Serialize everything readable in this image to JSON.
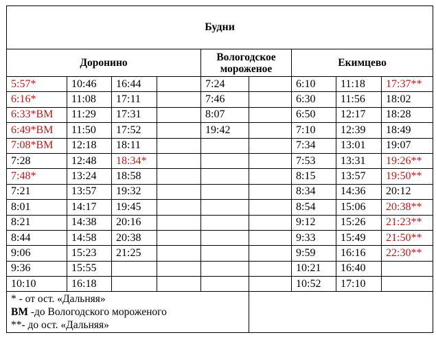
{
  "title": "Будни",
  "headers": {
    "doronino": "Доронино",
    "vologodskoe": "Вологодское мороженое",
    "ekimtsevo": "Екимцево"
  },
  "colors": {
    "highlight": "#b01c1c",
    "text": "#000000"
  },
  "rows": [
    [
      {
        "t": "5:57*",
        "red": true
      },
      {
        "t": "10:46"
      },
      {
        "t": "16:44"
      },
      {
        "t": ""
      },
      {
        "t": "7:24"
      },
      {
        "t": ""
      },
      {
        "t": "6:10"
      },
      {
        "t": "11:18"
      },
      {
        "t": "17:37**",
        "red": true
      }
    ],
    [
      {
        "t": "6:16*",
        "red": true
      },
      {
        "t": "11:08"
      },
      {
        "t": "17:11"
      },
      {
        "t": ""
      },
      {
        "t": "7:46"
      },
      {
        "t": ""
      },
      {
        "t": "6:30"
      },
      {
        "t": "11:56"
      },
      {
        "t": "18:02"
      }
    ],
    [
      {
        "t": "6:33*ВМ",
        "red": true
      },
      {
        "t": "11:29"
      },
      {
        "t": "17:31"
      },
      {
        "t": ""
      },
      {
        "t": "8:07"
      },
      {
        "t": ""
      },
      {
        "t": "6:50"
      },
      {
        "t": "12:17"
      },
      {
        "t": "18:28"
      }
    ],
    [
      {
        "t": "6:49*ВМ",
        "red": true
      },
      {
        "t": "11:50"
      },
      {
        "t": "17:52"
      },
      {
        "t": ""
      },
      {
        "t": "19:42"
      },
      {
        "t": ""
      },
      {
        "t": "7:10"
      },
      {
        "t": "12:39"
      },
      {
        "t": "18:49"
      }
    ],
    [
      {
        "t": "7:08*ВМ",
        "red": true
      },
      {
        "t": "12:18"
      },
      {
        "t": "18:11"
      },
      {
        "t": ""
      },
      {
        "t": ""
      },
      {
        "t": ""
      },
      {
        "t": "7:34"
      },
      {
        "t": "13:01"
      },
      {
        "t": "19:07"
      }
    ],
    [
      {
        "t": "7:28"
      },
      {
        "t": "12:48"
      },
      {
        "t": "18:34*",
        "red": true
      },
      {
        "t": ""
      },
      {
        "t": ""
      },
      {
        "t": ""
      },
      {
        "t": "7:53"
      },
      {
        "t": "13:31"
      },
      {
        "t": "19:26**",
        "red": true
      }
    ],
    [
      {
        "t": "7:48*",
        "red": true
      },
      {
        "t": "13:24"
      },
      {
        "t": "18:58"
      },
      {
        "t": ""
      },
      {
        "t": ""
      },
      {
        "t": ""
      },
      {
        "t": "8:15"
      },
      {
        "t": "13:57"
      },
      {
        "t": "19:50**",
        "red": true
      }
    ],
    [
      {
        "t": "7:21"
      },
      {
        "t": "13:57"
      },
      {
        "t": "19:32"
      },
      {
        "t": ""
      },
      {
        "t": ""
      },
      {
        "t": ""
      },
      {
        "t": "8:34"
      },
      {
        "t": "14:36"
      },
      {
        "t": "20:12"
      }
    ],
    [
      {
        "t": "8:01"
      },
      {
        "t": "14:17"
      },
      {
        "t": "19:45"
      },
      {
        "t": ""
      },
      {
        "t": ""
      },
      {
        "t": ""
      },
      {
        "t": "8:54"
      },
      {
        "t": "15:06"
      },
      {
        "t": "20:38**",
        "red": true
      }
    ],
    [
      {
        "t": "8:21"
      },
      {
        "t": "14:38"
      },
      {
        "t": "20:16"
      },
      {
        "t": ""
      },
      {
        "t": ""
      },
      {
        "t": ""
      },
      {
        "t": "9:12"
      },
      {
        "t": "15:26"
      },
      {
        "t": "21:23**",
        "red": true
      }
    ],
    [
      {
        "t": "8:44"
      },
      {
        "t": "14:58"
      },
      {
        "t": "20:38"
      },
      {
        "t": ""
      },
      {
        "t": ""
      },
      {
        "t": ""
      },
      {
        "t": "9:33"
      },
      {
        "t": "15:49"
      },
      {
        "t": "21:50**",
        "red": true
      }
    ],
    [
      {
        "t": "9:06"
      },
      {
        "t": "15:23"
      },
      {
        "t": "21:25"
      },
      {
        "t": ""
      },
      {
        "t": ""
      },
      {
        "t": ""
      },
      {
        "t": "9:59"
      },
      {
        "t": "16:16"
      },
      {
        "t": "22:30**",
        "red": true
      }
    ],
    [
      {
        "t": "9:36"
      },
      {
        "t": "15:55"
      },
      {
        "t": ""
      },
      {
        "t": ""
      },
      {
        "t": ""
      },
      {
        "t": ""
      },
      {
        "t": "10:21"
      },
      {
        "t": "16:40"
      },
      {
        "t": ""
      }
    ],
    [
      {
        "t": "10:10"
      },
      {
        "t": "16:18"
      },
      {
        "t": ""
      },
      {
        "t": ""
      },
      {
        "t": ""
      },
      {
        "t": ""
      },
      {
        "t": "10:52"
      },
      {
        "t": "17:10"
      },
      {
        "t": ""
      }
    ]
  ],
  "legend": {
    "star": "* - от ост. «Дальняя»",
    "vm_abbr": "ВМ",
    "vm_text": " -до Вологодского мороженого",
    "double_star": "**- до ост. «Дальняя»"
  }
}
